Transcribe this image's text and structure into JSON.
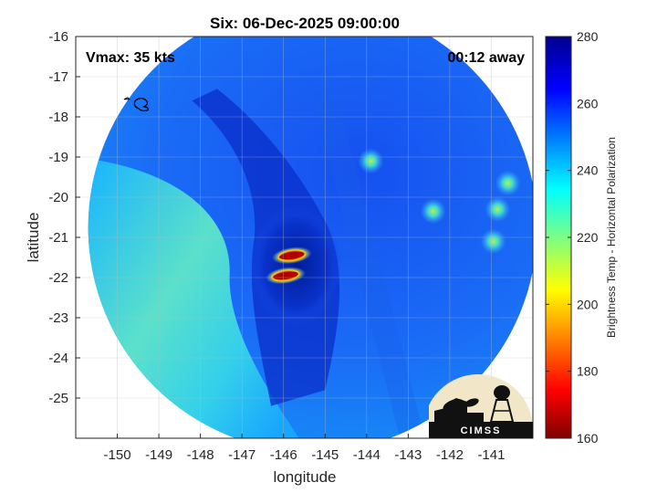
{
  "chart_data": {
    "type": "heatmap",
    "title": "Six: 06-Dec-2025 09:00:00",
    "xlabel": "longitude",
    "ylabel": "latitude",
    "xlim": [
      -151,
      -140
    ],
    "ylim": [
      -26,
      -16
    ],
    "x_ticks": [
      -150,
      -149,
      -148,
      -147,
      -146,
      -145,
      -144,
      -143,
      -142,
      -141
    ],
    "y_ticks": [
      -16,
      -17,
      -18,
      -19,
      -20,
      -21,
      -22,
      -23,
      -24,
      -25
    ],
    "grid": true,
    "colorbar": {
      "label": "Brightness Temp - Horizontal Polarization",
      "range": [
        160,
        280
      ],
      "ticks": [
        160,
        180,
        200,
        220,
        240,
        260,
        280
      ],
      "colormap": "jet"
    },
    "annotations": {
      "vmax": "Vmax: 35 kts",
      "time_offset": "00:12 away"
    },
    "swath": {
      "center_lon": -145.3,
      "center_lat": -20.75,
      "radius_deg": 5.4
    },
    "features": [
      {
        "name": "eyewall-convection-north",
        "lon": -145.8,
        "lat": -21.45,
        "value": 170
      },
      {
        "name": "eyewall-convection-south",
        "lon": -145.95,
        "lat": -21.95,
        "value": 175
      },
      {
        "name": "cloud-band-cell-1",
        "lon": -140.95,
        "lat": -21.1,
        "value": 215
      },
      {
        "name": "cloud-band-cell-2",
        "lon": -140.85,
        "lat": -20.3,
        "value": 220
      },
      {
        "name": "cloud-band-cell-3",
        "lon": -140.6,
        "lat": -19.65,
        "value": 225
      },
      {
        "name": "cloud-band-cell-4",
        "lon": -143.9,
        "lat": -19.1,
        "value": 245
      },
      {
        "name": "cloud-band-cell-5",
        "lon": -142.4,
        "lat": -20.35,
        "value": 238
      },
      {
        "name": "clear-sky-region",
        "lon": -149.8,
        "lat": -22.2,
        "value": 225
      }
    ],
    "island": {
      "lon": -149.4,
      "lat": -17.7
    }
  },
  "logo": {
    "text": "CIMSS"
  }
}
